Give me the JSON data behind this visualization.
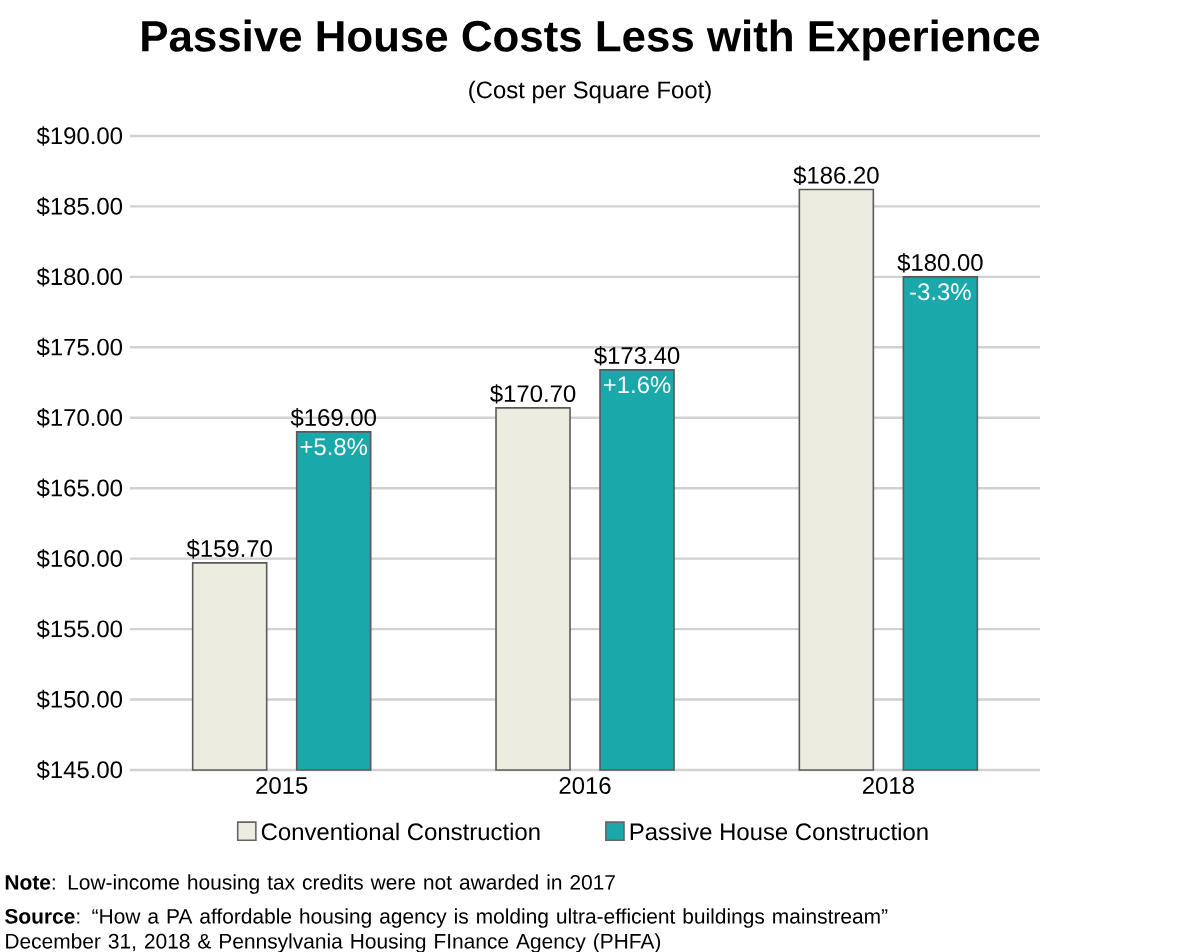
{
  "chart_data": {
    "type": "bar",
    "title": "Passive House Costs Less with Experience",
    "subtitle": "(Cost per Square Foot)",
    "categories": [
      "2015",
      "2016",
      "2018"
    ],
    "series": [
      {
        "name": "Conventional Construction",
        "color": "#ecece0",
        "values": [
          159.7,
          170.7,
          186.2
        ],
        "value_labels": [
          "$159.70",
          "$170.70",
          "$186.20"
        ]
      },
      {
        "name": "Passive House Construction",
        "color": "#1ba8aa",
        "values": [
          169.0,
          173.4,
          180.0
        ],
        "value_labels": [
          "$169.00",
          "$173.40",
          "$180.00"
        ]
      }
    ],
    "ylim": [
      145,
      190
    ],
    "yticks": [
      {
        "value": 145,
        "label": "$145.00"
      },
      {
        "value": 150,
        "label": "$150.00"
      },
      {
        "value": 155,
        "label": "$155.00"
      },
      {
        "value": 160,
        "label": "$160.00"
      },
      {
        "value": 165,
        "label": "$165.00"
      },
      {
        "value": 170,
        "label": "$170.00"
      },
      {
        "value": 175,
        "label": "$175.00"
      },
      {
        "value": 180,
        "label": "$180.00"
      },
      {
        "value": 185,
        "label": "$185.00"
      },
      {
        "value": 190,
        "label": "$190.00"
      }
    ],
    "grid": "y",
    "legend": "bottom",
    "annotations": [
      "+5.8%",
      "+1.6%",
      "-3.3%",
      "**Note**: Low-income housing tax credits were not awarded in 2017",
      "**Source**: “How a PA affordable housing agency is molding ultra-efficient buildings mainstream” December 31, 2018 & Pennsylvania Housing FInance Agency (PHFA)"
    ]
  }
}
